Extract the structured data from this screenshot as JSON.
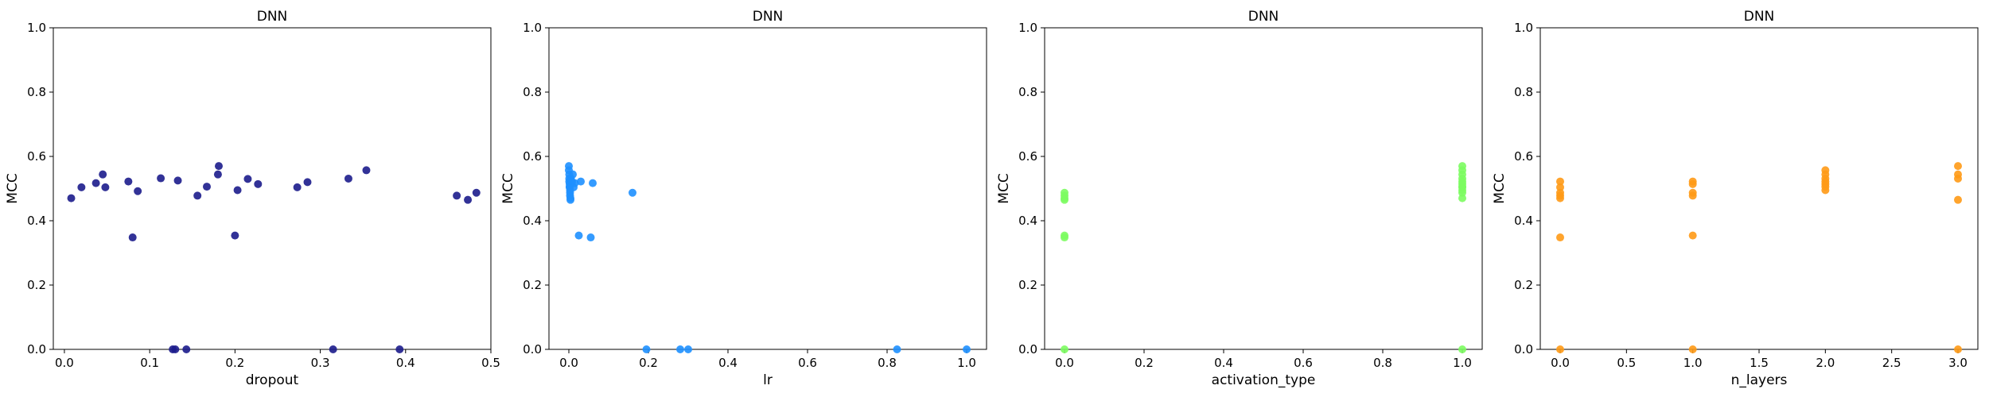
{
  "chart_data": [
    {
      "type": "scatter",
      "title": "DNN",
      "xlabel": "dropout",
      "ylabel": "MCC",
      "xlim": [
        -0.013,
        0.5
      ],
      "ylim": [
        0,
        1
      ],
      "xticks": [
        0.0,
        0.1,
        0.2,
        0.3,
        0.4,
        0.5
      ],
      "xtick_labels": [
        "0.0",
        "0.1",
        "0.2",
        "0.3",
        "0.4",
        "0.5"
      ],
      "yticks": [
        0.0,
        0.2,
        0.4,
        0.6,
        0.8,
        1.0
      ],
      "ytick_labels": [
        "0.0",
        "0.2",
        "0.4",
        "0.6",
        "0.8",
        "1.0"
      ],
      "grid": false,
      "color": "#1c1c8c",
      "points": [
        [
          0.008,
          0.47
        ],
        [
          0.02,
          0.504
        ],
        [
          0.037,
          0.517
        ],
        [
          0.045,
          0.544
        ],
        [
          0.048,
          0.504
        ],
        [
          0.075,
          0.522
        ],
        [
          0.08,
          0.348
        ],
        [
          0.086,
          0.492
        ],
        [
          0.113,
          0.532
        ],
        [
          0.127,
          0.0
        ],
        [
          0.13,
          0.0
        ],
        [
          0.133,
          0.525
        ],
        [
          0.143,
          0.0
        ],
        [
          0.156,
          0.478
        ],
        [
          0.167,
          0.506
        ],
        [
          0.18,
          0.544
        ],
        [
          0.181,
          0.57
        ],
        [
          0.2,
          0.354
        ],
        [
          0.203,
          0.495
        ],
        [
          0.215,
          0.53
        ],
        [
          0.227,
          0.514
        ],
        [
          0.273,
          0.504
        ],
        [
          0.285,
          0.52
        ],
        [
          0.315,
          0.0
        ],
        [
          0.333,
          0.531
        ],
        [
          0.354,
          0.557
        ],
        [
          0.393,
          0.0
        ],
        [
          0.46,
          0.478
        ],
        [
          0.473,
          0.465
        ],
        [
          0.483,
          0.487
        ]
      ]
    },
    {
      "type": "scatter",
      "title": "DNN",
      "xlabel": "lr",
      "ylabel": "MCC",
      "xlim": [
        -0.05,
        1.05
      ],
      "ylim": [
        0,
        1
      ],
      "xticks": [
        0.0,
        0.2,
        0.4,
        0.6,
        0.8,
        1.0
      ],
      "xtick_labels": [
        "0.0",
        "0.2",
        "0.4",
        "0.6",
        "0.8",
        "1.0"
      ],
      "yticks": [
        0.0,
        0.2,
        0.4,
        0.6,
        0.8,
        1.0
      ],
      "ytick_labels": [
        "0.0",
        "0.2",
        "0.4",
        "0.6",
        "0.8",
        "1.0"
      ],
      "grid": false,
      "color": "#1e90ff",
      "points": [
        [
          0.0,
          0.57
        ],
        [
          0.0,
          0.557
        ],
        [
          0.001,
          0.544
        ],
        [
          0.001,
          0.531
        ],
        [
          0.001,
          0.522
        ],
        [
          0.002,
          0.514
        ],
        [
          0.002,
          0.506
        ],
        [
          0.002,
          0.504
        ],
        [
          0.003,
          0.495
        ],
        [
          0.003,
          0.487
        ],
        [
          0.003,
          0.478
        ],
        [
          0.004,
          0.47
        ],
        [
          0.004,
          0.465
        ],
        [
          0.005,
          0.532
        ],
        [
          0.006,
          0.525
        ],
        [
          0.008,
          0.52
        ],
        [
          0.01,
          0.544
        ],
        [
          0.012,
          0.504
        ],
        [
          0.015,
          0.517
        ],
        [
          0.025,
          0.354
        ],
        [
          0.03,
          0.522
        ],
        [
          0.055,
          0.348
        ],
        [
          0.06,
          0.517
        ],
        [
          0.16,
          0.487
        ],
        [
          0.195,
          0.0
        ],
        [
          0.28,
          0.0
        ],
        [
          0.3,
          0.0
        ],
        [
          0.825,
          0.0
        ],
        [
          1.0,
          0.0
        ]
      ]
    },
    {
      "type": "scatter",
      "title": "DNN",
      "xlabel": "activation_type",
      "ylabel": "MCC",
      "xlim": [
        -0.05,
        1.05
      ],
      "ylim": [
        0,
        1
      ],
      "xticks": [
        0.0,
        0.2,
        0.4,
        0.6,
        0.8,
        1.0
      ],
      "xtick_labels": [
        "0.0",
        "0.2",
        "0.4",
        "0.6",
        "0.8",
        "1.0"
      ],
      "yticks": [
        0.0,
        0.2,
        0.4,
        0.6,
        0.8,
        1.0
      ],
      "ytick_labels": [
        "0.0",
        "0.2",
        "0.4",
        "0.6",
        "0.8",
        "1.0"
      ],
      "grid": false,
      "color": "#7cfc60",
      "points": [
        [
          0,
          0.487
        ],
        [
          0,
          0.478
        ],
        [
          0,
          0.47
        ],
        [
          0,
          0.465
        ],
        [
          0,
          0.354
        ],
        [
          0,
          0.348
        ],
        [
          0,
          0.0
        ],
        [
          1,
          0.57
        ],
        [
          1,
          0.557
        ],
        [
          1,
          0.544
        ],
        [
          1,
          0.531
        ],
        [
          1,
          0.522
        ],
        [
          1,
          0.514
        ],
        [
          1,
          0.506
        ],
        [
          1,
          0.504
        ],
        [
          1,
          0.495
        ],
        [
          1,
          0.487
        ],
        [
          1,
          0.47
        ],
        [
          1,
          0.0
        ]
      ]
    },
    {
      "type": "scatter",
      "title": "DNN",
      "xlabel": "n_layers",
      "ylabel": "MCC",
      "xlim": [
        -0.15,
        3.15
      ],
      "ylim": [
        0,
        1
      ],
      "xticks": [
        0.0,
        0.5,
        1.0,
        1.5,
        2.0,
        2.5,
        3.0
      ],
      "xtick_labels": [
        "0.0",
        "0.5",
        "1.0",
        "1.5",
        "2.0",
        "2.5",
        "3.0"
      ],
      "yticks": [
        0.0,
        0.2,
        0.4,
        0.6,
        0.8,
        1.0
      ],
      "ytick_labels": [
        "0.0",
        "0.2",
        "0.4",
        "0.6",
        "0.8",
        "1.0"
      ],
      "grid": false,
      "color": "#ff9a16",
      "points": [
        [
          0,
          0.522
        ],
        [
          0,
          0.504
        ],
        [
          0,
          0.487
        ],
        [
          0,
          0.478
        ],
        [
          0,
          0.47
        ],
        [
          0,
          0.348
        ],
        [
          0,
          0.0
        ],
        [
          1,
          0.522
        ],
        [
          1,
          0.514
        ],
        [
          1,
          0.487
        ],
        [
          1,
          0.478
        ],
        [
          1,
          0.354
        ],
        [
          1,
          0.0
        ],
        [
          2,
          0.557
        ],
        [
          2,
          0.544
        ],
        [
          2,
          0.531
        ],
        [
          2,
          0.522
        ],
        [
          2,
          0.514
        ],
        [
          2,
          0.506
        ],
        [
          2,
          0.495
        ],
        [
          3,
          0.57
        ],
        [
          3,
          0.544
        ],
        [
          3,
          0.531
        ],
        [
          3,
          0.465
        ],
        [
          3,
          0.0
        ]
      ]
    }
  ]
}
